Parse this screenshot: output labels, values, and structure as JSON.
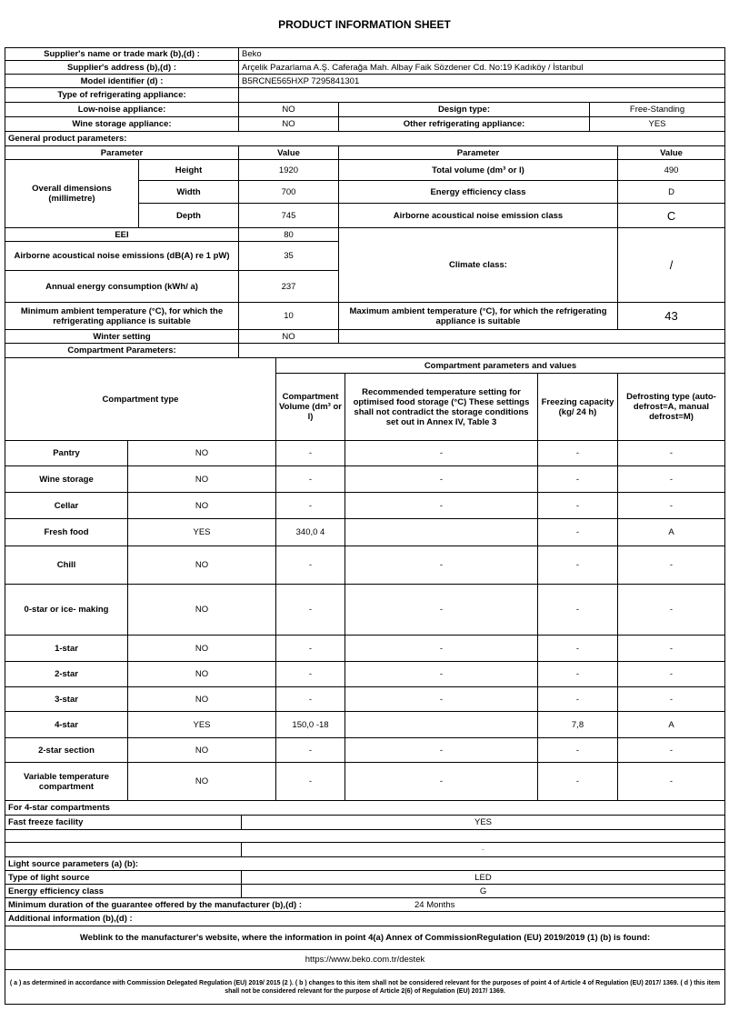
{
  "title": "PRODUCT INFORMATION SHEET",
  "supplier": {
    "name_label": "Supplier's name or trade mark (b),(d) :",
    "name": "Beko",
    "address_label": "Supplier's address (b),(d) :",
    "address": "Arçelik Pazarlama A.Ş. Caferağa Mah. Albay Faik Sözdener Cd. No:19 Kadıköy / İstanbul",
    "model_label": "Model identifier (d) :",
    "model": "B5RCNE565HXP 7295841301"
  },
  "type": {
    "label": "Type of refrigerating appliance:",
    "low_noise_label": "Low-noise appliance:",
    "low_noise": "NO",
    "design_label": "Design type:",
    "design": "Free-Standing",
    "wine_label": "Wine storage appliance:",
    "wine": "NO",
    "other_label": "Other refrigerating appliance:",
    "other": "YES"
  },
  "general": {
    "label": "General product parameters:",
    "param_header": "Parameter",
    "value_header": "Value",
    "dims_label": "Overall dimensions (millimetre)",
    "height_label": "Height",
    "height": "1920",
    "width_label": "Width",
    "width": "700",
    "depth_label": "Depth",
    "depth": "745",
    "total_volume_label": "Total volume (dm³ or l)",
    "total_volume": "490",
    "eec_label": "Energy efficiency class",
    "eec": "D",
    "noise_class_label": "Airborne acoustical noise emission class",
    "noise_class": "C",
    "eei_label": "EEI",
    "eei": "80",
    "noise_label": "Airborne acoustical noise emissions (dB(A) re 1 pW)",
    "noise": "35",
    "annual_label": "Annual energy consumption (kWh/ a)",
    "annual": "237",
    "climate_label": "Climate class:",
    "climate": "/",
    "min_amb_label": "Minimum ambient temperature (°C), for which the refrigerating appliance is suitable",
    "min_amb": "10",
    "max_amb_label": "Maximum ambient temperature (°C), for which the refrigerating appliance is suitable",
    "max_amb": "43",
    "winter_label": "Winter setting",
    "winter": "NO"
  },
  "compartments": {
    "label": "Compartment Parameters:",
    "group_header": "Compartment parameters and values",
    "type_header": "Compartment type",
    "volume_header": "Compartment Volume (dm³ or l)",
    "temp_header": "Recommended temperature setting for optimised food storage (°C) These settings shall not contradict the storage conditions set out in Annex IV, Table 3",
    "freezing_header": "Freezing capacity (kg/ 24 h)",
    "defrost_header": "Defrosting type (auto-defrost=A, manual defrost=M)",
    "rows": [
      {
        "name": "Pantry",
        "present": "NO",
        "volume": "-",
        "temp": "-",
        "freezing": "-",
        "defrost": "-"
      },
      {
        "name": "Wine storage",
        "present": "NO",
        "volume": "-",
        "temp": "-",
        "freezing": "-",
        "defrost": "-"
      },
      {
        "name": "Cellar",
        "present": "NO",
        "volume": "-",
        "temp": "-",
        "freezing": "-",
        "defrost": "-"
      },
      {
        "name": "Fresh food",
        "present": "YES",
        "volume": "340,0 4",
        "temp": "",
        "freezing": "-",
        "defrost": "A"
      },
      {
        "name": "Chill",
        "present": "NO",
        "volume": "-",
        "temp": "-",
        "freezing": "-",
        "defrost": "-"
      },
      {
        "name": "0-star or ice- making",
        "present": "NO",
        "volume": "-",
        "temp": "-",
        "freezing": "-",
        "defrost": "-"
      },
      {
        "name": "1-star",
        "present": "NO",
        "volume": "-",
        "temp": "-",
        "freezing": "-",
        "defrost": "-"
      },
      {
        "name": "2-star",
        "present": "NO",
        "volume": "-",
        "temp": "-",
        "freezing": "-",
        "defrost": "-"
      },
      {
        "name": "3-star",
        "present": "NO",
        "volume": "-",
        "temp": "-",
        "freezing": "-",
        "defrost": "-"
      },
      {
        "name": "4-star",
        "present": "YES",
        "volume": "150,0 -18",
        "temp": "",
        "freezing": "7,8",
        "defrost": "A"
      },
      {
        "name": "2-star section",
        "present": "NO",
        "volume": "-",
        "temp": "-",
        "freezing": "-",
        "defrost": "-"
      },
      {
        "name": "Variable temperature compartment",
        "present": "NO",
        "volume": "-",
        "temp": "-",
        "freezing": "-",
        "defrost": "-"
      }
    ]
  },
  "four_star": {
    "label": "For 4-star compartments",
    "fast_freeze_label": "Fast freeze facility",
    "fast_freeze": "YES",
    "extra_value": "-"
  },
  "light": {
    "label": "Light source parameters (a) (b):",
    "type_label": "Type of light source",
    "type": "LED",
    "eec_label": "Energy efficiency class",
    "eec": "G"
  },
  "guarantee": {
    "label": "Minimum duration of the guarantee offered by the manufacturer (b),(d) :",
    "value": "24 Months"
  },
  "additional": {
    "label": "Additional information (b),(d) :",
    "weblink_label": "Weblink to the manufacturer's website, where the information in point 4(a) Annex of CommissionRegulation (EU) 2019/2019 (1) (b) is found:",
    "url": "https://www.beko.com.tr/destek"
  },
  "footnote": "( a ) as determined in accordance with Commission Delegated Regulation (EU) 2019/ 2015 (2 ). ( b ) changes to this item shall not be considered relevant for the purposes of point 4 of Article 4 of Regulation (EU) 2017/ 1369. ( d ) this item shall not be considered relevant for the purpose of Article 2(6) of Regulation (EU) 2017/ 1369."
}
